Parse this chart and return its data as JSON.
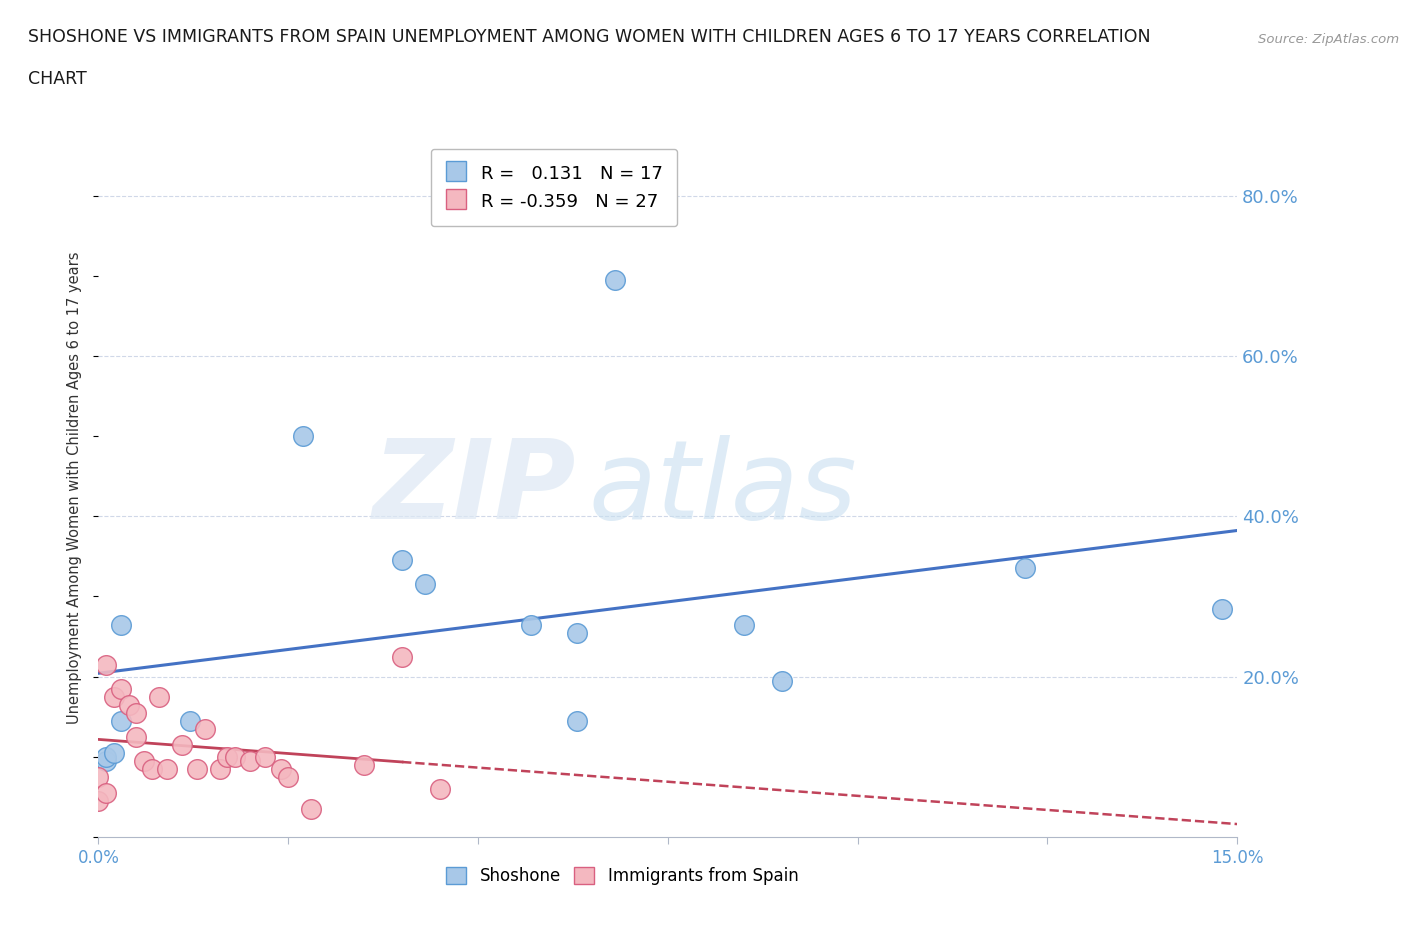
{
  "title_line1": "SHOSHONE VS IMMIGRANTS FROM SPAIN UNEMPLOYMENT AMONG WOMEN WITH CHILDREN AGES 6 TO 17 YEARS CORRELATION",
  "title_line2": "CHART",
  "source": "Source: ZipAtlas.com",
  "ylabel": "Unemployment Among Women with Children Ages 6 to 17 years",
  "xlim": [
    0.0,
    0.15
  ],
  "ylim": [
    0.0,
    0.87
  ],
  "xticks": [
    0.0,
    0.025,
    0.05,
    0.075,
    0.1,
    0.125,
    0.15
  ],
  "xticklabels_show": [
    "0.0%",
    "15.0%"
  ],
  "yticks_right": [
    0.2,
    0.4,
    0.6,
    0.8
  ],
  "yticklabels_right": [
    "20.0%",
    "40.0%",
    "60.0%",
    "80.0%"
  ],
  "blue_R": "0.131",
  "blue_N": "17",
  "pink_R": "-0.359",
  "pink_N": "27",
  "blue_color": "#a8c8e8",
  "pink_color": "#f4b8c0",
  "blue_edge_color": "#5b9bd5",
  "pink_edge_color": "#d96080",
  "blue_line_color": "#4472c4",
  "pink_line_color": "#c0435a",
  "watermark_zip": "ZIP",
  "watermark_atlas": "atlas",
  "legend_label1": "Shoshone",
  "legend_label2": "Immigrants from Spain",
  "shoshone_x": [
    0.001,
    0.001,
    0.002,
    0.003,
    0.003,
    0.012,
    0.027,
    0.04,
    0.043,
    0.057,
    0.063,
    0.063,
    0.068,
    0.085,
    0.09,
    0.122,
    0.148
  ],
  "shoshone_y": [
    0.095,
    0.1,
    0.105,
    0.145,
    0.265,
    0.145,
    0.5,
    0.345,
    0.315,
    0.265,
    0.255,
    0.145,
    0.695,
    0.265,
    0.195,
    0.335,
    0.285
  ],
  "spain_x": [
    0.0,
    0.0,
    0.001,
    0.001,
    0.002,
    0.003,
    0.004,
    0.005,
    0.005,
    0.006,
    0.007,
    0.008,
    0.009,
    0.011,
    0.013,
    0.014,
    0.016,
    0.017,
    0.018,
    0.02,
    0.022,
    0.024,
    0.025,
    0.028,
    0.035,
    0.04,
    0.045
  ],
  "spain_y": [
    0.045,
    0.075,
    0.055,
    0.215,
    0.175,
    0.185,
    0.165,
    0.155,
    0.125,
    0.095,
    0.085,
    0.175,
    0.085,
    0.115,
    0.085,
    0.135,
    0.085,
    0.1,
    0.1,
    0.095,
    0.1,
    0.085,
    0.075,
    0.035,
    0.09,
    0.225,
    0.06
  ],
  "grid_color": "#d0d8e8",
  "spine_color": "#b0b8c8",
  "tick_color": "#5b9bd5",
  "title_color": "#1a1a1a",
  "source_color": "#999999",
  "ylabel_color": "#333333"
}
